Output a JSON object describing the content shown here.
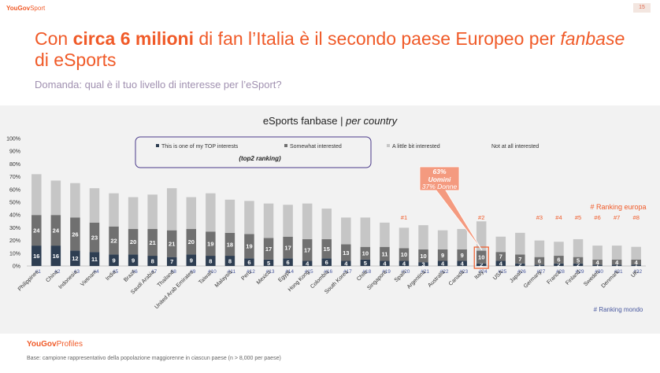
{
  "header": {
    "brand": "YouGov",
    "brand_suffix": "Sport",
    "page_number": "15"
  },
  "title": {
    "part1": "Con ",
    "bold": "circa 6 milioni",
    "part2": " di fan l’Italia è il secondo paese Europeo per ",
    "italic": "fanbase",
    "part3": " di eSports"
  },
  "question": "Domanda: qual è il tuo livello di interesse per l’eSport?",
  "footer": {
    "brand": "YouGov",
    "brand_suffix": "Profiles",
    "note": "Base: campione rappresentativo della popolazione maggiorenne in ciascun paese (n > 8,000 per paese)"
  },
  "colors": {
    "top": "#2e3e52",
    "somewhat": "#707070",
    "little": "#c6c6c6",
    "accent": "#f05a28",
    "callout": "#f49a7f"
  },
  "chart_data": {
    "type": "bar",
    "stacked": true,
    "title": "eSports fanbase | ",
    "title_italic": "per country",
    "ylim": [
      0,
      100
    ],
    "yticks": [
      "0%",
      "10%",
      "20%",
      "30%",
      "40%",
      "50%",
      "60%",
      "70%",
      "80%",
      "90%",
      "100%"
    ],
    "legend": [
      "This is one of my TOP interests",
      "Somewhat interested",
      "A little bit interested",
      "Not at all interested"
    ],
    "legend_note": "(top2 ranking)",
    "categories": [
      "Philippines",
      "China",
      "Indonesia",
      "Vietnam",
      "India",
      "Brazil",
      "Saudi Arabia",
      "Thailand",
      "United Arab Emirates",
      "Taiwan",
      "Malaysia",
      "Peru",
      "Mexico",
      "Egypt",
      "Hong Kong",
      "Colombia",
      "South Korea",
      "Chile",
      "Singapore",
      "Spain",
      "Argentina",
      "Australia",
      "Canada",
      "Italy",
      "USA",
      "Japan",
      "Germany",
      "France",
      "Finland",
      "Sweden",
      "Denmark",
      "UK"
    ],
    "world_rank": [
      "#1",
      "#2",
      "#3",
      "#4",
      "#5",
      "#6",
      "#7",
      "#8",
      "#9",
      "#10",
      "#11",
      "#12",
      "#13",
      "#14",
      "#15",
      "#16",
      "#17",
      "#18",
      "#19",
      "#20",
      "#21",
      "#22",
      "#23",
      "#24",
      "#25",
      "#26",
      "#27",
      "#28",
      "#29",
      "#30",
      "#31",
      "#32"
    ],
    "series": [
      {
        "name": "This is one of my TOP interests",
        "values": [
          16,
          16,
          12,
          11,
          9,
          9,
          8,
          7,
          9,
          8,
          8,
          6,
          5,
          6,
          4,
          6,
          4,
          5,
          4,
          4,
          3,
          4,
          4,
          2,
          4,
          2,
          1,
          2,
          2,
          1,
          1,
          1
        ]
      },
      {
        "name": "Somewhat interested",
        "values": [
          24,
          24,
          26,
          23,
          22,
          20,
          21,
          21,
          20,
          19,
          18,
          19,
          17,
          17,
          17,
          15,
          13,
          10,
          11,
          10,
          10,
          9,
          9,
          10,
          7,
          7,
          6,
          6,
          5,
          4,
          4,
          4
        ]
      },
      {
        "name": "A little bit interested",
        "values": [
          32,
          27,
          27,
          27,
          26,
          25,
          27,
          33,
          25,
          30,
          26,
          26,
          27,
          25,
          28,
          24,
          21,
          23,
          19,
          16,
          19,
          15,
          16,
          23,
          12,
          17,
          13,
          11,
          14,
          11,
          11,
          10
        ]
      }
    ],
    "europe_rank": [
      {
        "index": 19,
        "label": "#1"
      },
      {
        "index": 23,
        "label": "#2"
      },
      {
        "index": 26,
        "label": "#3"
      },
      {
        "index": 27,
        "label": "#4"
      },
      {
        "index": 28,
        "label": "#5"
      },
      {
        "index": 29,
        "label": "#6"
      },
      {
        "index": 30,
        "label": "#7"
      },
      {
        "index": 31,
        "label": "#8"
      }
    ],
    "europe_rank_label": "# Ranking europa",
    "world_rank_label": "# Ranking mondo",
    "callout": {
      "line1": "63%",
      "line2": "Uomini",
      "line3": "37% Donne"
    }
  }
}
